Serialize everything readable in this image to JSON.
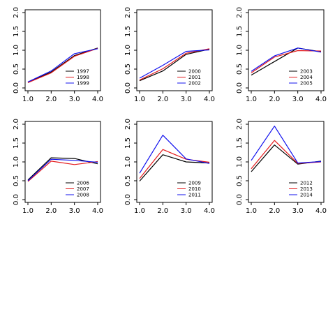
{
  "colors": {
    "black": "#000000",
    "red": "#e41a1c",
    "blue": "#1010ee"
  },
  "chart_data": [
    {
      "type": "line",
      "x": [
        1,
        2,
        3,
        4
      ],
      "xlim": [
        1,
        4
      ],
      "ylim": [
        0,
        2
      ],
      "x_ticks": [
        "1.0",
        "2.0",
        "3.0",
        "4.0"
      ],
      "y_ticks": [
        "0.0",
        "0.5",
        "1.0",
        "1.5",
        "2.0"
      ],
      "legend_position": "bottom-right",
      "series": [
        {
          "name": "1997",
          "color": "black",
          "values": [
            0.15,
            0.42,
            0.86,
            1.06
          ]
        },
        {
          "name": "1998",
          "color": "red",
          "values": [
            0.14,
            0.4,
            0.84,
            1.05
          ]
        },
        {
          "name": "1999",
          "color": "blue",
          "values": [
            0.16,
            0.45,
            0.91,
            1.04
          ]
        }
      ]
    },
    {
      "type": "line",
      "x": [
        1,
        2,
        3,
        4
      ],
      "xlim": [
        1,
        4
      ],
      "ylim": [
        0,
        2
      ],
      "x_ticks": [
        "1.0",
        "2.0",
        "3.0",
        "4.0"
      ],
      "y_ticks": [
        "0.0",
        "0.5",
        "1.0",
        "1.5",
        "2.0"
      ],
      "legend_position": "bottom-right",
      "series": [
        {
          "name": "2000",
          "color": "black",
          "values": [
            0.19,
            0.45,
            0.89,
            1.03
          ]
        },
        {
          "name": "2001",
          "color": "red",
          "values": [
            0.21,
            0.51,
            0.92,
            1.04
          ]
        },
        {
          "name": "2002",
          "color": "blue",
          "values": [
            0.26,
            0.6,
            0.97,
            1.01
          ]
        }
      ]
    },
    {
      "type": "line",
      "x": [
        1,
        2,
        3,
        4
      ],
      "xlim": [
        1,
        4
      ],
      "ylim": [
        0,
        2
      ],
      "x_ticks": [
        "1.0",
        "2.0",
        "3.0",
        "4.0"
      ],
      "y_ticks": [
        "0.0",
        "0.5",
        "1.0",
        "1.5",
        "2.0"
      ],
      "legend_position": "bottom-right",
      "series": [
        {
          "name": "2003",
          "color": "black",
          "values": [
            0.34,
            0.7,
            1.06,
            0.96
          ]
        },
        {
          "name": "2004",
          "color": "red",
          "values": [
            0.4,
            0.82,
            0.99,
            0.98
          ]
        },
        {
          "name": "2005",
          "color": "blue",
          "values": [
            0.44,
            0.85,
            1.06,
            0.95
          ]
        }
      ]
    },
    {
      "type": "line",
      "x": [
        1,
        2,
        3,
        4
      ],
      "xlim": [
        1,
        4
      ],
      "ylim": [
        0,
        2
      ],
      "x_ticks": [
        "1.0",
        "2.0",
        "3.0",
        "4.0"
      ],
      "y_ticks": [
        "0.0",
        "0.5",
        "1.0",
        "1.5",
        "2.0"
      ],
      "legend_position": "bottom-right",
      "series": [
        {
          "name": "2006",
          "color": "black",
          "values": [
            0.52,
            1.11,
            1.09,
            0.95
          ]
        },
        {
          "name": "2007",
          "color": "red",
          "values": [
            0.48,
            1.02,
            0.93,
            1.01
          ]
        },
        {
          "name": "2008",
          "color": "blue",
          "values": [
            0.5,
            1.07,
            1.04,
            0.99
          ]
        }
      ]
    },
    {
      "type": "line",
      "x": [
        1,
        2,
        3,
        4
      ],
      "xlim": [
        1,
        4
      ],
      "ylim": [
        0,
        2
      ],
      "x_ticks": [
        "1.0",
        "2.0",
        "3.0",
        "4.0"
      ],
      "y_ticks": [
        "0.0",
        "0.5",
        "1.0",
        "1.5",
        "2.0"
      ],
      "legend_position": "bottom-right",
      "series": [
        {
          "name": "2009",
          "color": "black",
          "values": [
            0.49,
            1.19,
            1.0,
            0.97
          ]
        },
        {
          "name": "2010",
          "color": "red",
          "values": [
            0.56,
            1.33,
            1.07,
            0.99
          ]
        },
        {
          "name": "2011",
          "color": "blue",
          "values": [
            0.7,
            1.71,
            1.08,
            0.96
          ]
        }
      ]
    },
    {
      "type": "line",
      "x": [
        1,
        2,
        3,
        4
      ],
      "xlim": [
        1,
        4
      ],
      "ylim": [
        0,
        2
      ],
      "x_ticks": [
        "1.0",
        "2.0",
        "3.0",
        "4.0"
      ],
      "y_ticks": [
        "0.0",
        "0.5",
        "1.0",
        "1.5",
        "2.0"
      ],
      "legend_position": "bottom-right",
      "series": [
        {
          "name": "2012",
          "color": "black",
          "values": [
            0.74,
            1.45,
            0.94,
            1.02
          ]
        },
        {
          "name": "2013",
          "color": "red",
          "values": [
            0.82,
            1.57,
            0.96,
            1.0
          ]
        },
        {
          "name": "2014",
          "color": "blue",
          "values": [
            1.04,
            1.95,
            0.97,
            1.01
          ]
        }
      ]
    }
  ]
}
